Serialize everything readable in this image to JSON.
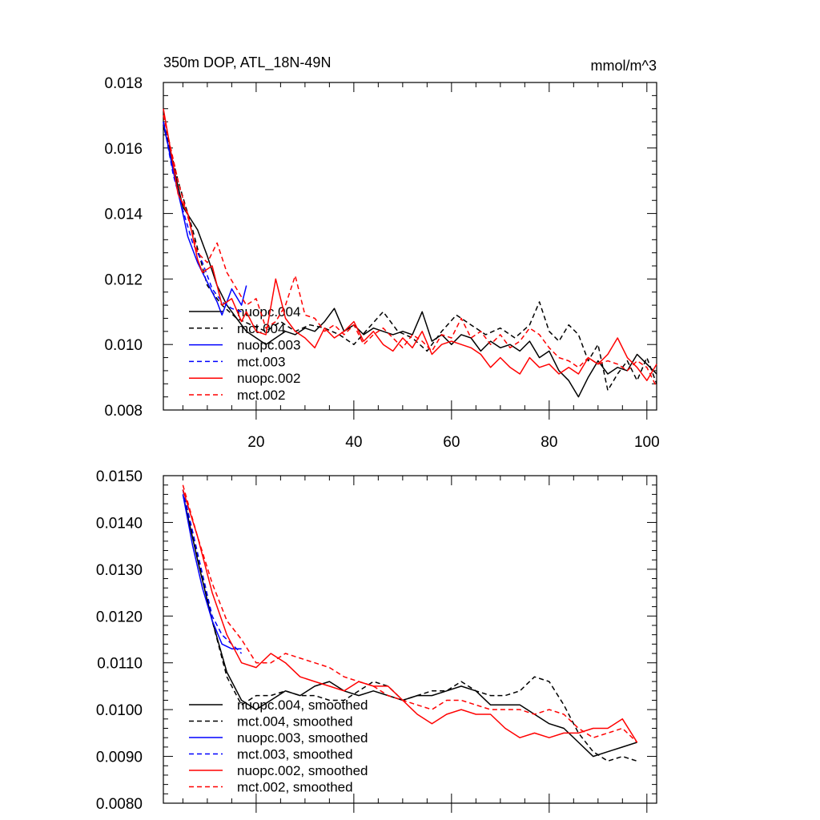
{
  "chart_data": [
    {
      "type": "line",
      "title": "350m DOP, ATL_18N-49N",
      "units": "mmol/m^3",
      "xlabel": "",
      "ylabel": "",
      "xlim": [
        1,
        102
      ],
      "ylim": [
        0.008,
        0.018
      ],
      "xticks": [
        20,
        40,
        60,
        80,
        100
      ],
      "xtick_labels": [
        "20",
        "40",
        "60",
        "80",
        "100"
      ],
      "yticks": [
        0.008,
        0.01,
        0.012,
        0.014,
        0.016,
        0.018
      ],
      "ytick_labels": [
        "0.008",
        "0.010",
        "0.012",
        "0.014",
        "0.016",
        "0.018"
      ],
      "legend_position": "lower-left",
      "series": [
        {
          "name": "nuopc.004",
          "color": "#000000",
          "dash": "solid",
          "x": [
            1,
            5,
            8,
            10,
            12,
            14,
            16,
            18,
            20,
            22,
            24,
            26,
            28,
            30,
            32,
            34,
            36,
            38,
            40,
            42,
            44,
            46,
            48,
            50,
            52,
            54,
            56,
            58,
            60,
            62,
            64,
            66,
            68,
            70,
            72,
            74,
            76,
            78,
            80,
            82,
            84,
            86,
            88,
            90,
            92,
            94,
            96,
            98,
            100,
            102
          ],
          "y": [
            0.0167,
            0.0142,
            0.0135,
            0.0127,
            0.0118,
            0.0112,
            0.0108,
            0.0104,
            0.0102,
            0.01,
            0.0102,
            0.0104,
            0.0103,
            0.0105,
            0.0104,
            0.0107,
            0.0111,
            0.0104,
            0.0106,
            0.0103,
            0.0105,
            0.0104,
            0.0103,
            0.0104,
            0.0103,
            0.011,
            0.0101,
            0.0103,
            0.01,
            0.0103,
            0.0102,
            0.0098,
            0.0101,
            0.0099,
            0.01,
            0.0098,
            0.0101,
            0.0096,
            0.0098,
            0.0092,
            0.0089,
            0.0084,
            0.009,
            0.0095,
            0.0091,
            0.0093,
            0.0092,
            0.0097,
            0.0094,
            0.0091
          ]
        },
        {
          "name": "mct.004",
          "color": "#000000",
          "dash": "dashed",
          "x": [
            1,
            4,
            7,
            10,
            13,
            16,
            19,
            22,
            25,
            28,
            31,
            34,
            37,
            40,
            43,
            46,
            49,
            52,
            55,
            58,
            61,
            64,
            67,
            70,
            73,
            76,
            78,
            80,
            82,
            84,
            86,
            88,
            90,
            92,
            94,
            96,
            98,
            100,
            102
          ],
          "y": [
            0.0168,
            0.015,
            0.0135,
            0.0118,
            0.0112,
            0.0108,
            0.0106,
            0.0104,
            0.0107,
            0.0104,
            0.0106,
            0.0105,
            0.0103,
            0.01,
            0.0105,
            0.011,
            0.0104,
            0.0102,
            0.0098,
            0.0104,
            0.0109,
            0.0106,
            0.0103,
            0.0105,
            0.0102,
            0.0106,
            0.0113,
            0.0104,
            0.0101,
            0.0106,
            0.0103,
            0.0095,
            0.01,
            0.0086,
            0.0091,
            0.0095,
            0.0089,
            0.0096,
            0.0088
          ]
        },
        {
          "name": "nuopc.003",
          "color": "#0000ff",
          "dash": "solid",
          "x": [
            1,
            3,
            5,
            6,
            8,
            10,
            12,
            13,
            15,
            17,
            18
          ],
          "y": [
            0.0168,
            0.0153,
            0.014,
            0.0133,
            0.0125,
            0.0119,
            0.0113,
            0.0109,
            0.0117,
            0.0112,
            0.0118
          ]
        },
        {
          "name": "mct.003",
          "color": "#0000ff",
          "dash": "dashed",
          "x": [
            1,
            3,
            5,
            7,
            9,
            11,
            13,
            15,
            17
          ],
          "y": [
            0.0168,
            0.0152,
            0.0141,
            0.0131,
            0.0125,
            0.0117,
            0.0113,
            0.0111,
            0.011
          ]
        },
        {
          "name": "nuopc.002",
          "color": "#ff0000",
          "dash": "solid",
          "x": [
            1,
            3,
            4,
            6,
            8,
            9,
            11,
            13,
            15,
            17,
            18,
            20,
            22,
            24,
            26,
            28,
            30,
            32,
            34,
            36,
            38,
            40,
            42,
            44,
            46,
            48,
            50,
            52,
            54,
            56,
            58,
            60,
            62,
            64,
            66,
            68,
            70,
            72,
            74,
            76,
            78,
            80,
            82,
            84,
            86,
            88,
            90,
            92,
            94,
            96,
            98,
            100,
            102
          ],
          "y": [
            0.0172,
            0.0155,
            0.0146,
            0.014,
            0.0126,
            0.0122,
            0.0124,
            0.0112,
            0.0114,
            0.0107,
            0.011,
            0.0104,
            0.0103,
            0.012,
            0.0108,
            0.0104,
            0.0102,
            0.0099,
            0.0105,
            0.0102,
            0.0104,
            0.0107,
            0.0101,
            0.0104,
            0.01,
            0.0098,
            0.0102,
            0.0099,
            0.0104,
            0.0097,
            0.01,
            0.0101,
            0.01,
            0.0099,
            0.0097,
            0.0093,
            0.0096,
            0.0093,
            0.0091,
            0.0096,
            0.0093,
            0.0094,
            0.0091,
            0.0093,
            0.0091,
            0.0096,
            0.0094,
            0.0097,
            0.0102,
            0.0096,
            0.0093,
            0.0089,
            0.0094
          ]
        },
        {
          "name": "mct.002",
          "color": "#ff0000",
          "dash": "dashed",
          "x": [
            1,
            4,
            6,
            8,
            10,
            12,
            14,
            16,
            18,
            20,
            22,
            24,
            26,
            28,
            30,
            32,
            34,
            36,
            38,
            40,
            42,
            44,
            46,
            48,
            50,
            52,
            54,
            56,
            58,
            60,
            62,
            64,
            66,
            68,
            70,
            72,
            74,
            76,
            78,
            80,
            82,
            84,
            86,
            88,
            90,
            92,
            94,
            96,
            98,
            100,
            102
          ],
          "y": [
            0.017,
            0.015,
            0.0139,
            0.0128,
            0.0125,
            0.0131,
            0.0122,
            0.0117,
            0.0112,
            0.0114,
            0.0105,
            0.0107,
            0.0112,
            0.0121,
            0.0109,
            0.0108,
            0.0104,
            0.0106,
            0.0103,
            0.0106,
            0.01,
            0.0103,
            0.0105,
            0.0102,
            0.0099,
            0.0103,
            0.0101,
            0.0098,
            0.0103,
            0.0102,
            0.0108,
            0.0102,
            0.0104,
            0.01,
            0.0103,
            0.0099,
            0.0101,
            0.0105,
            0.0103,
            0.0099,
            0.0096,
            0.0095,
            0.0093,
            0.0096,
            0.0094,
            0.0095,
            0.0094,
            0.0092,
            0.0095,
            0.0093,
            0.0087
          ]
        }
      ]
    },
    {
      "type": "line",
      "title": "",
      "xlabel": "",
      "ylabel": "",
      "xlim": [
        1,
        102
      ],
      "ylim": [
        0.008,
        0.015
      ],
      "xticks": [
        20,
        40,
        60,
        80,
        100
      ],
      "xtick_labels": [],
      "yticks": [
        0.008,
        0.009,
        0.01,
        0.011,
        0.012,
        0.013,
        0.014,
        0.015
      ],
      "ytick_labels": [
        "0.0080",
        "0.0090",
        "0.0100",
        "0.0110",
        "0.0120",
        "0.0130",
        "0.0140",
        "0.0150"
      ],
      "legend_position": "lower-left",
      "series": [
        {
          "name": "nuopc.004, smoothed",
          "color": "#000000",
          "dash": "solid",
          "x": [
            5,
            8,
            11,
            14,
            17,
            20,
            23,
            26,
            29,
            32,
            35,
            38,
            41,
            44,
            47,
            50,
            53,
            56,
            59,
            62,
            65,
            68,
            71,
            74,
            77,
            80,
            83,
            86,
            89,
            92,
            95,
            98
          ],
          "y": [
            0.0146,
            0.0132,
            0.0119,
            0.0108,
            0.0102,
            0.01,
            0.0102,
            0.0104,
            0.0103,
            0.0105,
            0.0106,
            0.0104,
            0.0103,
            0.0104,
            0.0103,
            0.0102,
            0.0103,
            0.0103,
            0.0104,
            0.0105,
            0.0104,
            0.0101,
            0.0101,
            0.0101,
            0.0099,
            0.0097,
            0.0096,
            0.0093,
            0.009,
            0.0091,
            0.0092,
            0.0093
          ]
        },
        {
          "name": "mct.004, smoothed",
          "color": "#000000",
          "dash": "dashed",
          "x": [
            5,
            8,
            11,
            14,
            17,
            20,
            23,
            26,
            29,
            32,
            35,
            38,
            41,
            44,
            47,
            50,
            53,
            56,
            59,
            62,
            65,
            68,
            71,
            74,
            77,
            80,
            83,
            86,
            89,
            92,
            95,
            98
          ],
          "y": [
            0.0147,
            0.0133,
            0.0119,
            0.0107,
            0.0101,
            0.0103,
            0.0103,
            0.0104,
            0.0103,
            0.0103,
            0.0102,
            0.0102,
            0.0104,
            0.0106,
            0.0105,
            0.0102,
            0.0103,
            0.0104,
            0.0104,
            0.0106,
            0.0104,
            0.0103,
            0.0103,
            0.0104,
            0.0107,
            0.0106,
            0.0101,
            0.0095,
            0.0091,
            0.0089,
            0.009,
            0.0089
          ]
        },
        {
          "name": "nuopc.003, smoothed",
          "color": "#0000ff",
          "dash": "solid",
          "x": [
            5,
            7,
            9,
            11,
            13,
            15,
            17
          ],
          "y": [
            0.0146,
            0.0135,
            0.0126,
            0.0119,
            0.0114,
            0.0113,
            0.0113
          ]
        },
        {
          "name": "mct.003, smoothed",
          "color": "#0000ff",
          "dash": "dashed",
          "x": [
            5,
            7,
            9,
            11,
            13,
            15,
            17
          ],
          "y": [
            0.0147,
            0.0138,
            0.0129,
            0.012,
            0.0116,
            0.0114,
            0.0112
          ]
        },
        {
          "name": "nuopc.002, smoothed",
          "color": "#ff0000",
          "dash": "solid",
          "x": [
            5,
            8,
            11,
            14,
            17,
            20,
            23,
            26,
            29,
            32,
            35,
            38,
            41,
            44,
            47,
            50,
            53,
            56,
            59,
            62,
            65,
            68,
            71,
            74,
            77,
            80,
            83,
            86,
            89,
            92,
            95,
            98
          ],
          "y": [
            0.0147,
            0.0137,
            0.0125,
            0.0116,
            0.011,
            0.0109,
            0.0112,
            0.011,
            0.0107,
            0.0106,
            0.0105,
            0.0104,
            0.0106,
            0.0105,
            0.0105,
            0.0102,
            0.0099,
            0.0097,
            0.0099,
            0.01,
            0.0099,
            0.0099,
            0.0096,
            0.0094,
            0.0095,
            0.0094,
            0.0095,
            0.0095,
            0.0096,
            0.0096,
            0.0098,
            0.0093
          ]
        },
        {
          "name": "mct.002, smoothed",
          "color": "#ff0000",
          "dash": "dashed",
          "x": [
            5,
            8,
            11,
            14,
            17,
            20,
            23,
            26,
            29,
            32,
            35,
            38,
            41,
            44,
            47,
            50,
            53,
            56,
            59,
            62,
            65,
            68,
            71,
            74,
            77,
            80,
            83,
            86,
            89,
            92,
            95,
            98
          ],
          "y": [
            0.0148,
            0.0137,
            0.0127,
            0.0119,
            0.0115,
            0.011,
            0.011,
            0.0112,
            0.0111,
            0.011,
            0.0109,
            0.0107,
            0.0106,
            0.0105,
            0.0103,
            0.0102,
            0.0101,
            0.01,
            0.0102,
            0.0102,
            0.0101,
            0.01,
            0.01,
            0.01,
            0.0099,
            0.01,
            0.0099,
            0.0096,
            0.0094,
            0.0095,
            0.0096,
            0.0093
          ]
        }
      ]
    }
  ]
}
